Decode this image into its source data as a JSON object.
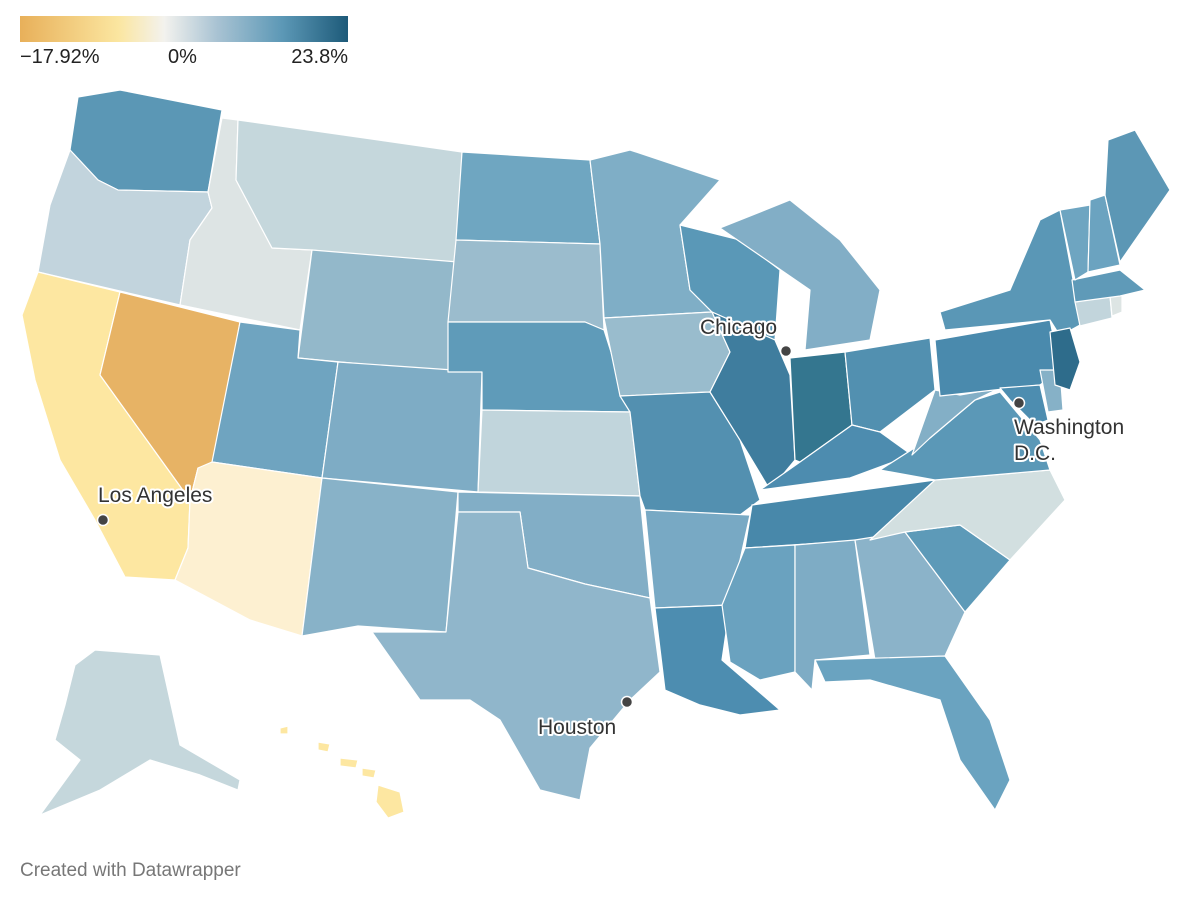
{
  "legend": {
    "min_label": "−17.92%",
    "mid_label": "0%",
    "max_label": "23.8%",
    "colors": [
      "#e8b05a",
      "#fbe6a0",
      "#f3f2ee",
      "#a9c3d3",
      "#5c98b6",
      "#1d5a79"
    ]
  },
  "cities": [
    {
      "name": "Los Angeles"
    },
    {
      "name": "Chicago"
    },
    {
      "name": "Washington D.C."
    },
    {
      "name": "Houston"
    }
  ],
  "states": [
    {
      "name": "Washington",
      "fill": "#5b97b5"
    },
    {
      "name": "Oregon",
      "fill": "#c2d4dd"
    },
    {
      "name": "California",
      "fill": "#fde7a1"
    },
    {
      "name": "Nevada",
      "fill": "#e7b365"
    },
    {
      "name": "Idaho",
      "fill": "#dde4e4"
    },
    {
      "name": "Montana",
      "fill": "#c5d7dc"
    },
    {
      "name": "Wyoming",
      "fill": "#93b8ca"
    },
    {
      "name": "Utah",
      "fill": "#6fa4c0"
    },
    {
      "name": "Arizona",
      "fill": "#fdf0d1"
    },
    {
      "name": "Colorado",
      "fill": "#7eacc5"
    },
    {
      "name": "New Mexico",
      "fill": "#88b2c8"
    },
    {
      "name": "North Dakota",
      "fill": "#6fa6c1"
    },
    {
      "name": "South Dakota",
      "fill": "#9bbccd"
    },
    {
      "name": "Nebraska",
      "fill": "#5f9bb9"
    },
    {
      "name": "Kansas",
      "fill": "#c1d5dc"
    },
    {
      "name": "Oklahoma",
      "fill": "#82aec6"
    },
    {
      "name": "Texas",
      "fill": "#90b6cb"
    },
    {
      "name": "Minnesota",
      "fill": "#7faec6"
    },
    {
      "name": "Iowa",
      "fill": "#99bccd"
    },
    {
      "name": "Missouri",
      "fill": "#5390b0"
    },
    {
      "name": "Arkansas",
      "fill": "#78a9c4"
    },
    {
      "name": "Louisiana",
      "fill": "#4d8db0"
    },
    {
      "name": "Wisconsin",
      "fill": "#5a98b7"
    },
    {
      "name": "Illinois",
      "fill": "#3f7d9e"
    },
    {
      "name": "Michigan",
      "fill": "#82aec6"
    },
    {
      "name": "Indiana",
      "fill": "#34768f"
    },
    {
      "name": "Ohio",
      "fill": "#5290b0"
    },
    {
      "name": "Kentucky",
      "fill": "#4d8caf"
    },
    {
      "name": "Tennessee",
      "fill": "#4888aa"
    },
    {
      "name": "Mississippi",
      "fill": "#6aa2bf"
    },
    {
      "name": "Alabama",
      "fill": "#7eacc5"
    },
    {
      "name": "Georgia",
      "fill": "#8bb3c9"
    },
    {
      "name": "Florida",
      "fill": "#6aa3c0"
    },
    {
      "name": "South Carolina",
      "fill": "#5d9ab8"
    },
    {
      "name": "North Carolina",
      "fill": "#d2dfe0"
    },
    {
      "name": "Virginia",
      "fill": "#5b98b7"
    },
    {
      "name": "West Virginia",
      "fill": "#83afc6"
    },
    {
      "name": "Pennsylvania",
      "fill": "#4a8aad"
    },
    {
      "name": "New York",
      "fill": "#5a97b6"
    },
    {
      "name": "Maryland",
      "fill": "#4d8db0"
    },
    {
      "name": "Delaware",
      "fill": "#86b1c7"
    },
    {
      "name": "New Jersey",
      "fill": "#2e6c8b"
    },
    {
      "name": "Connecticut",
      "fill": "#c2d5dc"
    },
    {
      "name": "Rhode Island",
      "fill": "#dde5e4"
    },
    {
      "name": "Massachusetts",
      "fill": "#5f9ab8"
    },
    {
      "name": "Vermont",
      "fill": "#6ea5c1"
    },
    {
      "name": "New Hampshire",
      "fill": "#6ba3c0"
    },
    {
      "name": "Maine",
      "fill": "#5c97b5"
    },
    {
      "name": "Alaska",
      "fill": "#c5d7dc"
    },
    {
      "name": "Hawaii",
      "fill": "#fde7a1"
    }
  ],
  "credit": "Created with Datawrapper"
}
